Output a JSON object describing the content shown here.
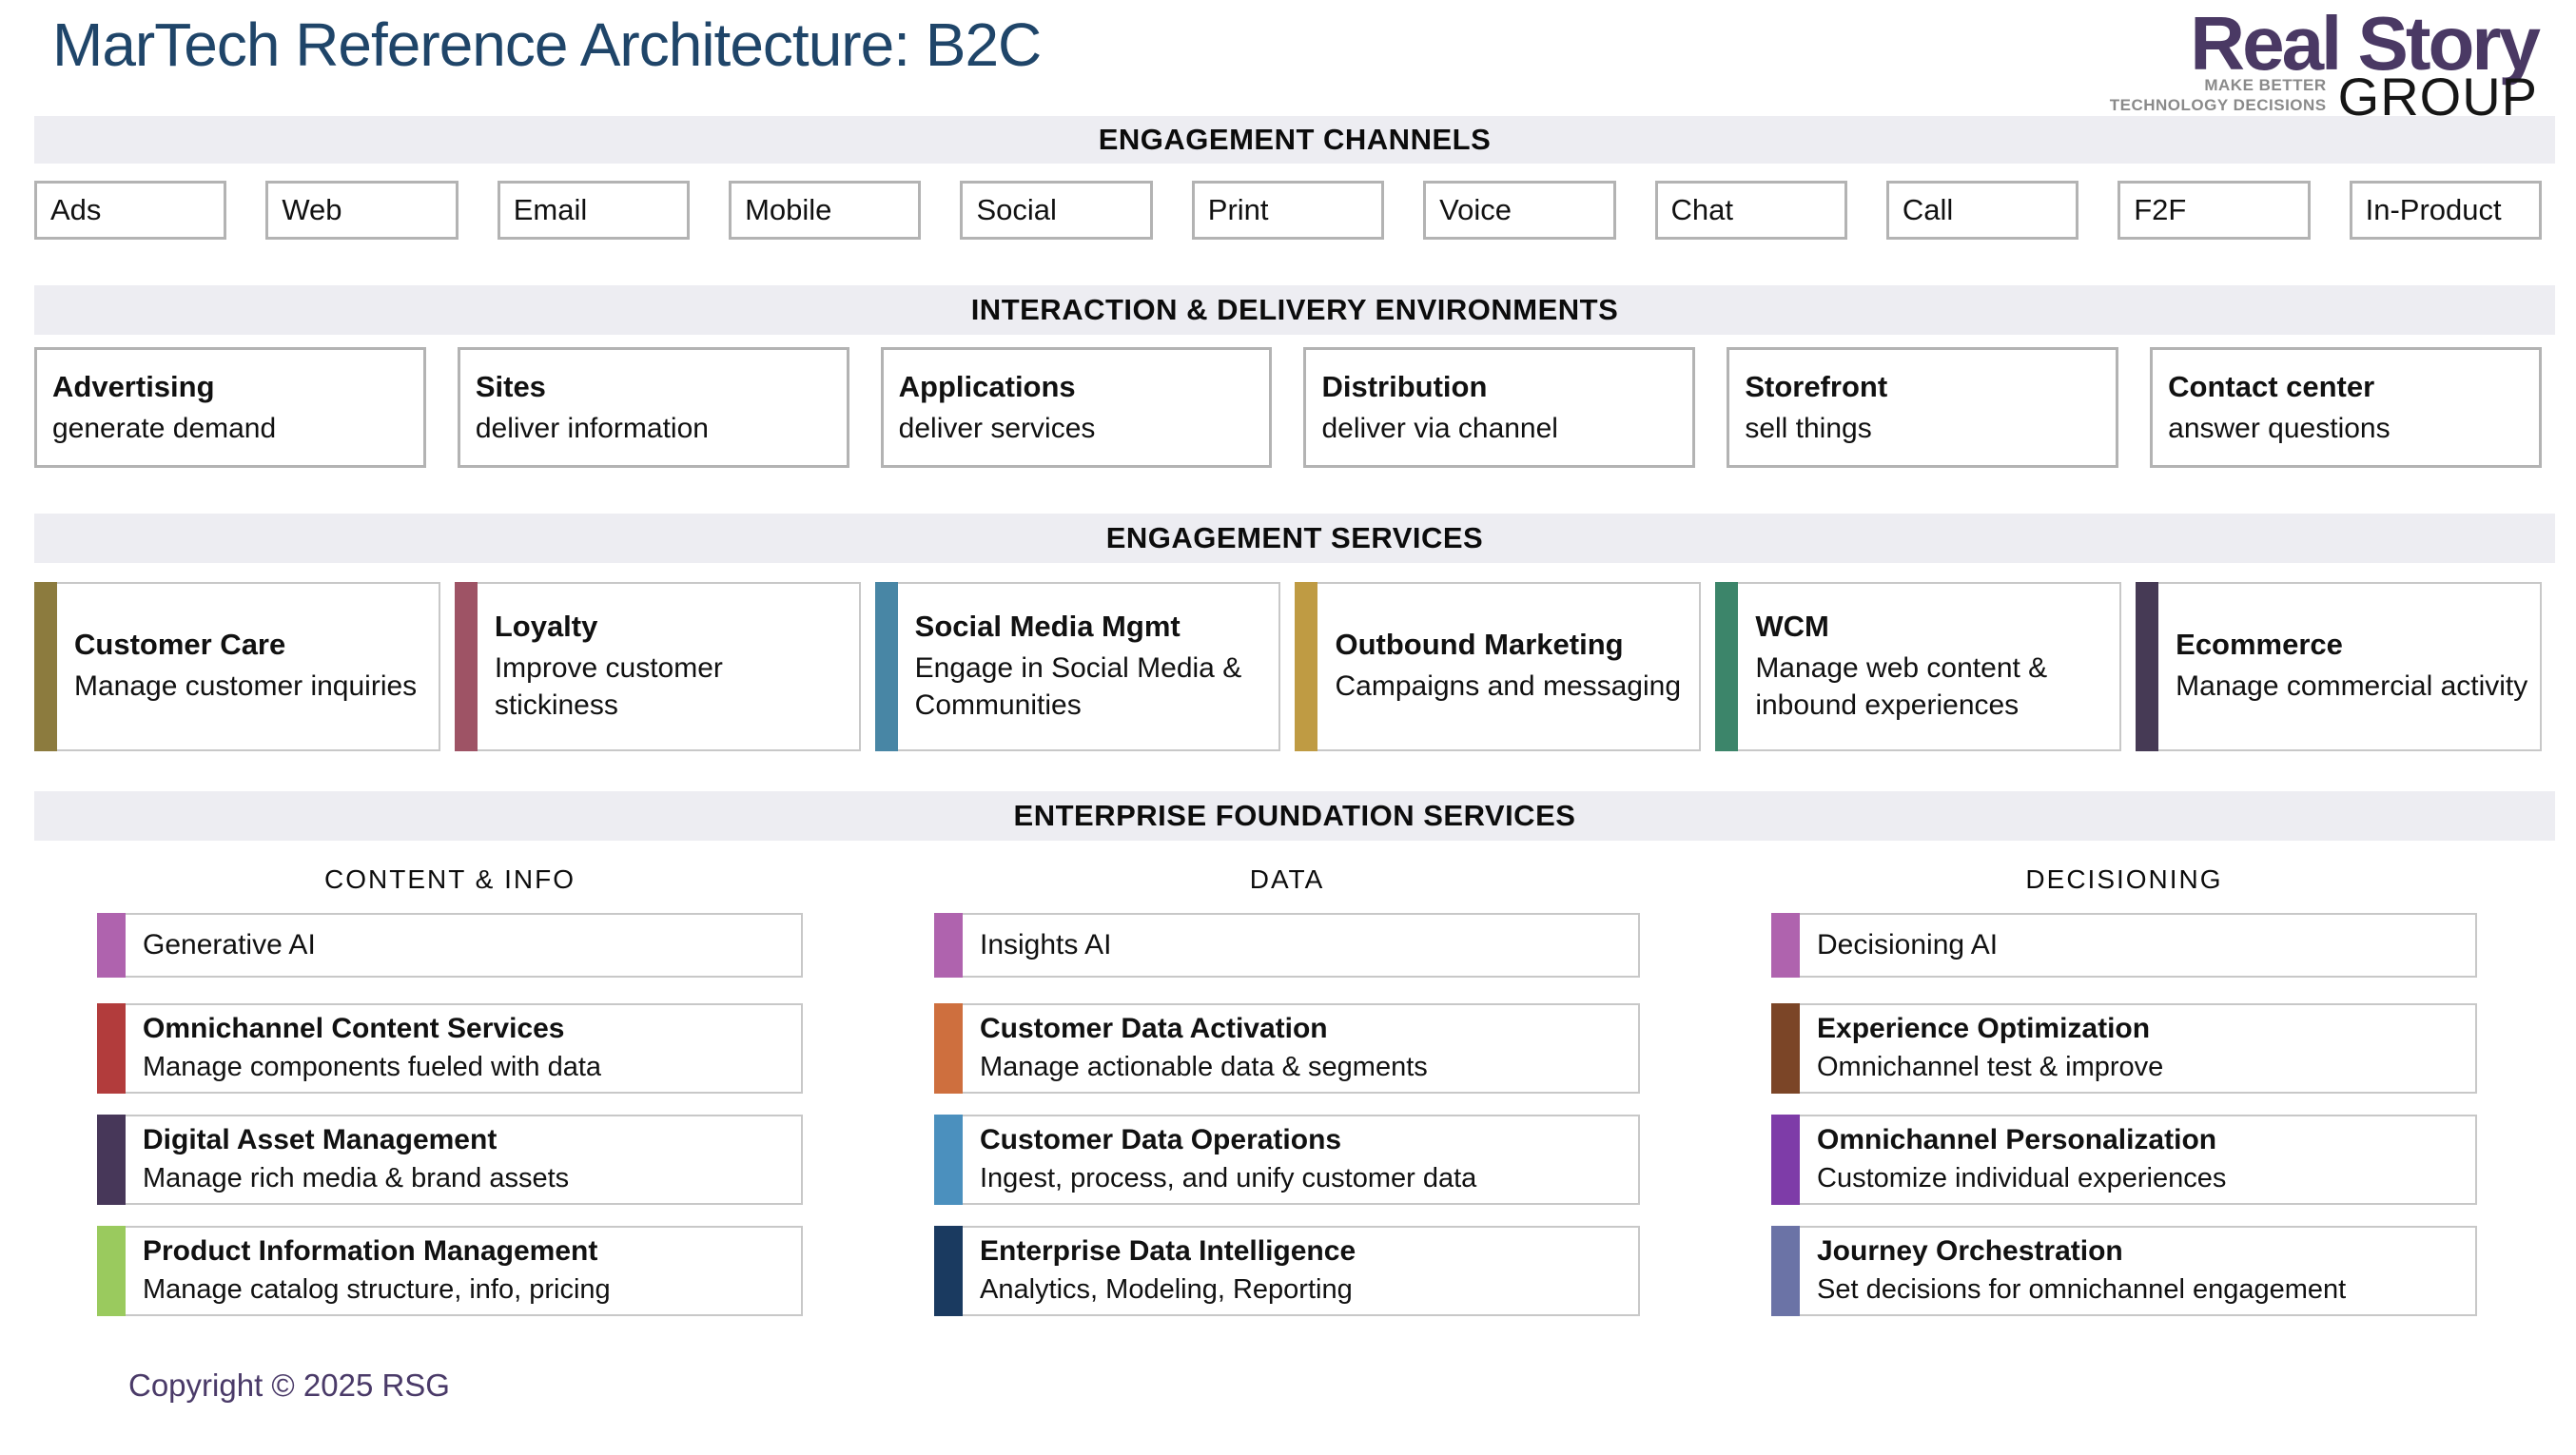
{
  "page": {
    "title": "MarTech Reference Architecture: B2C",
    "title_color": "#1F4569",
    "copyright": "Copyright © 2025 RSG",
    "copyright_color": "#4A3A68"
  },
  "logo": {
    "brand": "Real Story",
    "brand_color": "#4A3964",
    "tagline_line1": "MAKE BETTER",
    "tagline_line2": "TECHNOLOGY DECISIONS",
    "group": "GROUP"
  },
  "bands": {
    "channels": "ENGAGEMENT CHANNELS",
    "environments": "INTERACTION & DELIVERY ENVIRONMENTS",
    "services": "ENGAGEMENT SERVICES",
    "foundation": "ENTERPRISE FOUNDATION SERVICES"
  },
  "channels": {
    "items": [
      "Ads",
      "Web",
      "Email",
      "Mobile",
      "Social",
      "Print",
      "Voice",
      "Chat",
      "Call",
      "F2F",
      "In-Product"
    ]
  },
  "environments": {
    "items": [
      {
        "title": "Advertising",
        "subtitle": "generate demand"
      },
      {
        "title": "Sites",
        "subtitle": "deliver information"
      },
      {
        "title": "Applications",
        "subtitle": "deliver services"
      },
      {
        "title": "Distribution",
        "subtitle": "deliver via channel"
      },
      {
        "title": "Storefront",
        "subtitle": "sell things"
      },
      {
        "title": "Contact center",
        "subtitle": "answer questions"
      }
    ]
  },
  "services": {
    "items": [
      {
        "title": "Customer Care",
        "subtitle": "Manage customer inquiries",
        "color": "#8C7B3E"
      },
      {
        "title": "Loyalty",
        "subtitle": "Improve customer stickiness",
        "color": "#9E5365"
      },
      {
        "title": "Social Media Mgmt",
        "subtitle": "Engage in Social Media & Communities",
        "color": "#4886A5"
      },
      {
        "title": "Outbound Marketing",
        "subtitle": "Campaigns and messaging",
        "color": "#BF9B43"
      },
      {
        "title": "WCM",
        "subtitle": "Manage web content & inbound experiences",
        "color": "#3C856A"
      },
      {
        "title": "Ecommerce",
        "subtitle": "Manage commercial activity",
        "color": "#463A55"
      }
    ]
  },
  "foundation": {
    "columns": [
      {
        "header": "CONTENT & INFO",
        "rows": [
          {
            "title": "Generative AI",
            "color": "#AF63AE"
          },
          {
            "title": "Omnichannel Content Services",
            "subtitle": "Manage components fueled with data",
            "color": "#B23C3C"
          },
          {
            "title": "Digital Asset Management",
            "subtitle": "Manage rich media & brand assets",
            "color": "#473759"
          },
          {
            "title": "Product Information Management",
            "subtitle": "Manage catalog structure, info, pricing",
            "color": "#9ACA5E"
          }
        ]
      },
      {
        "header": "DATA",
        "rows": [
          {
            "title": "Insights AI",
            "color": "#AF63AE"
          },
          {
            "title": "Customer Data Activation",
            "subtitle": "Manage actionable data & segments",
            "color": "#CE6F3E"
          },
          {
            "title": "Customer Data Operations",
            "subtitle": "Ingest, process, and unify customer data",
            "color": "#4B90BE"
          },
          {
            "title": "Enterprise Data Intelligence",
            "subtitle": "Analytics, Modeling, Reporting",
            "color": "#1A3A60"
          }
        ]
      },
      {
        "header": "DECISIONING",
        "rows": [
          {
            "title": "Decisioning AI",
            "color": "#AF63AE"
          },
          {
            "title": "Experience Optimization",
            "subtitle": "Omnichannel test & improve",
            "color": "#7B4527"
          },
          {
            "title": "Omnichannel Personalization",
            "subtitle": "Customize individual experiences",
            "color": "#7E3CA8"
          },
          {
            "title": "Journey Orchestration",
            "subtitle": "Set decisions for omnichannel engagement",
            "color": "#6B73A6"
          }
        ]
      }
    ]
  }
}
